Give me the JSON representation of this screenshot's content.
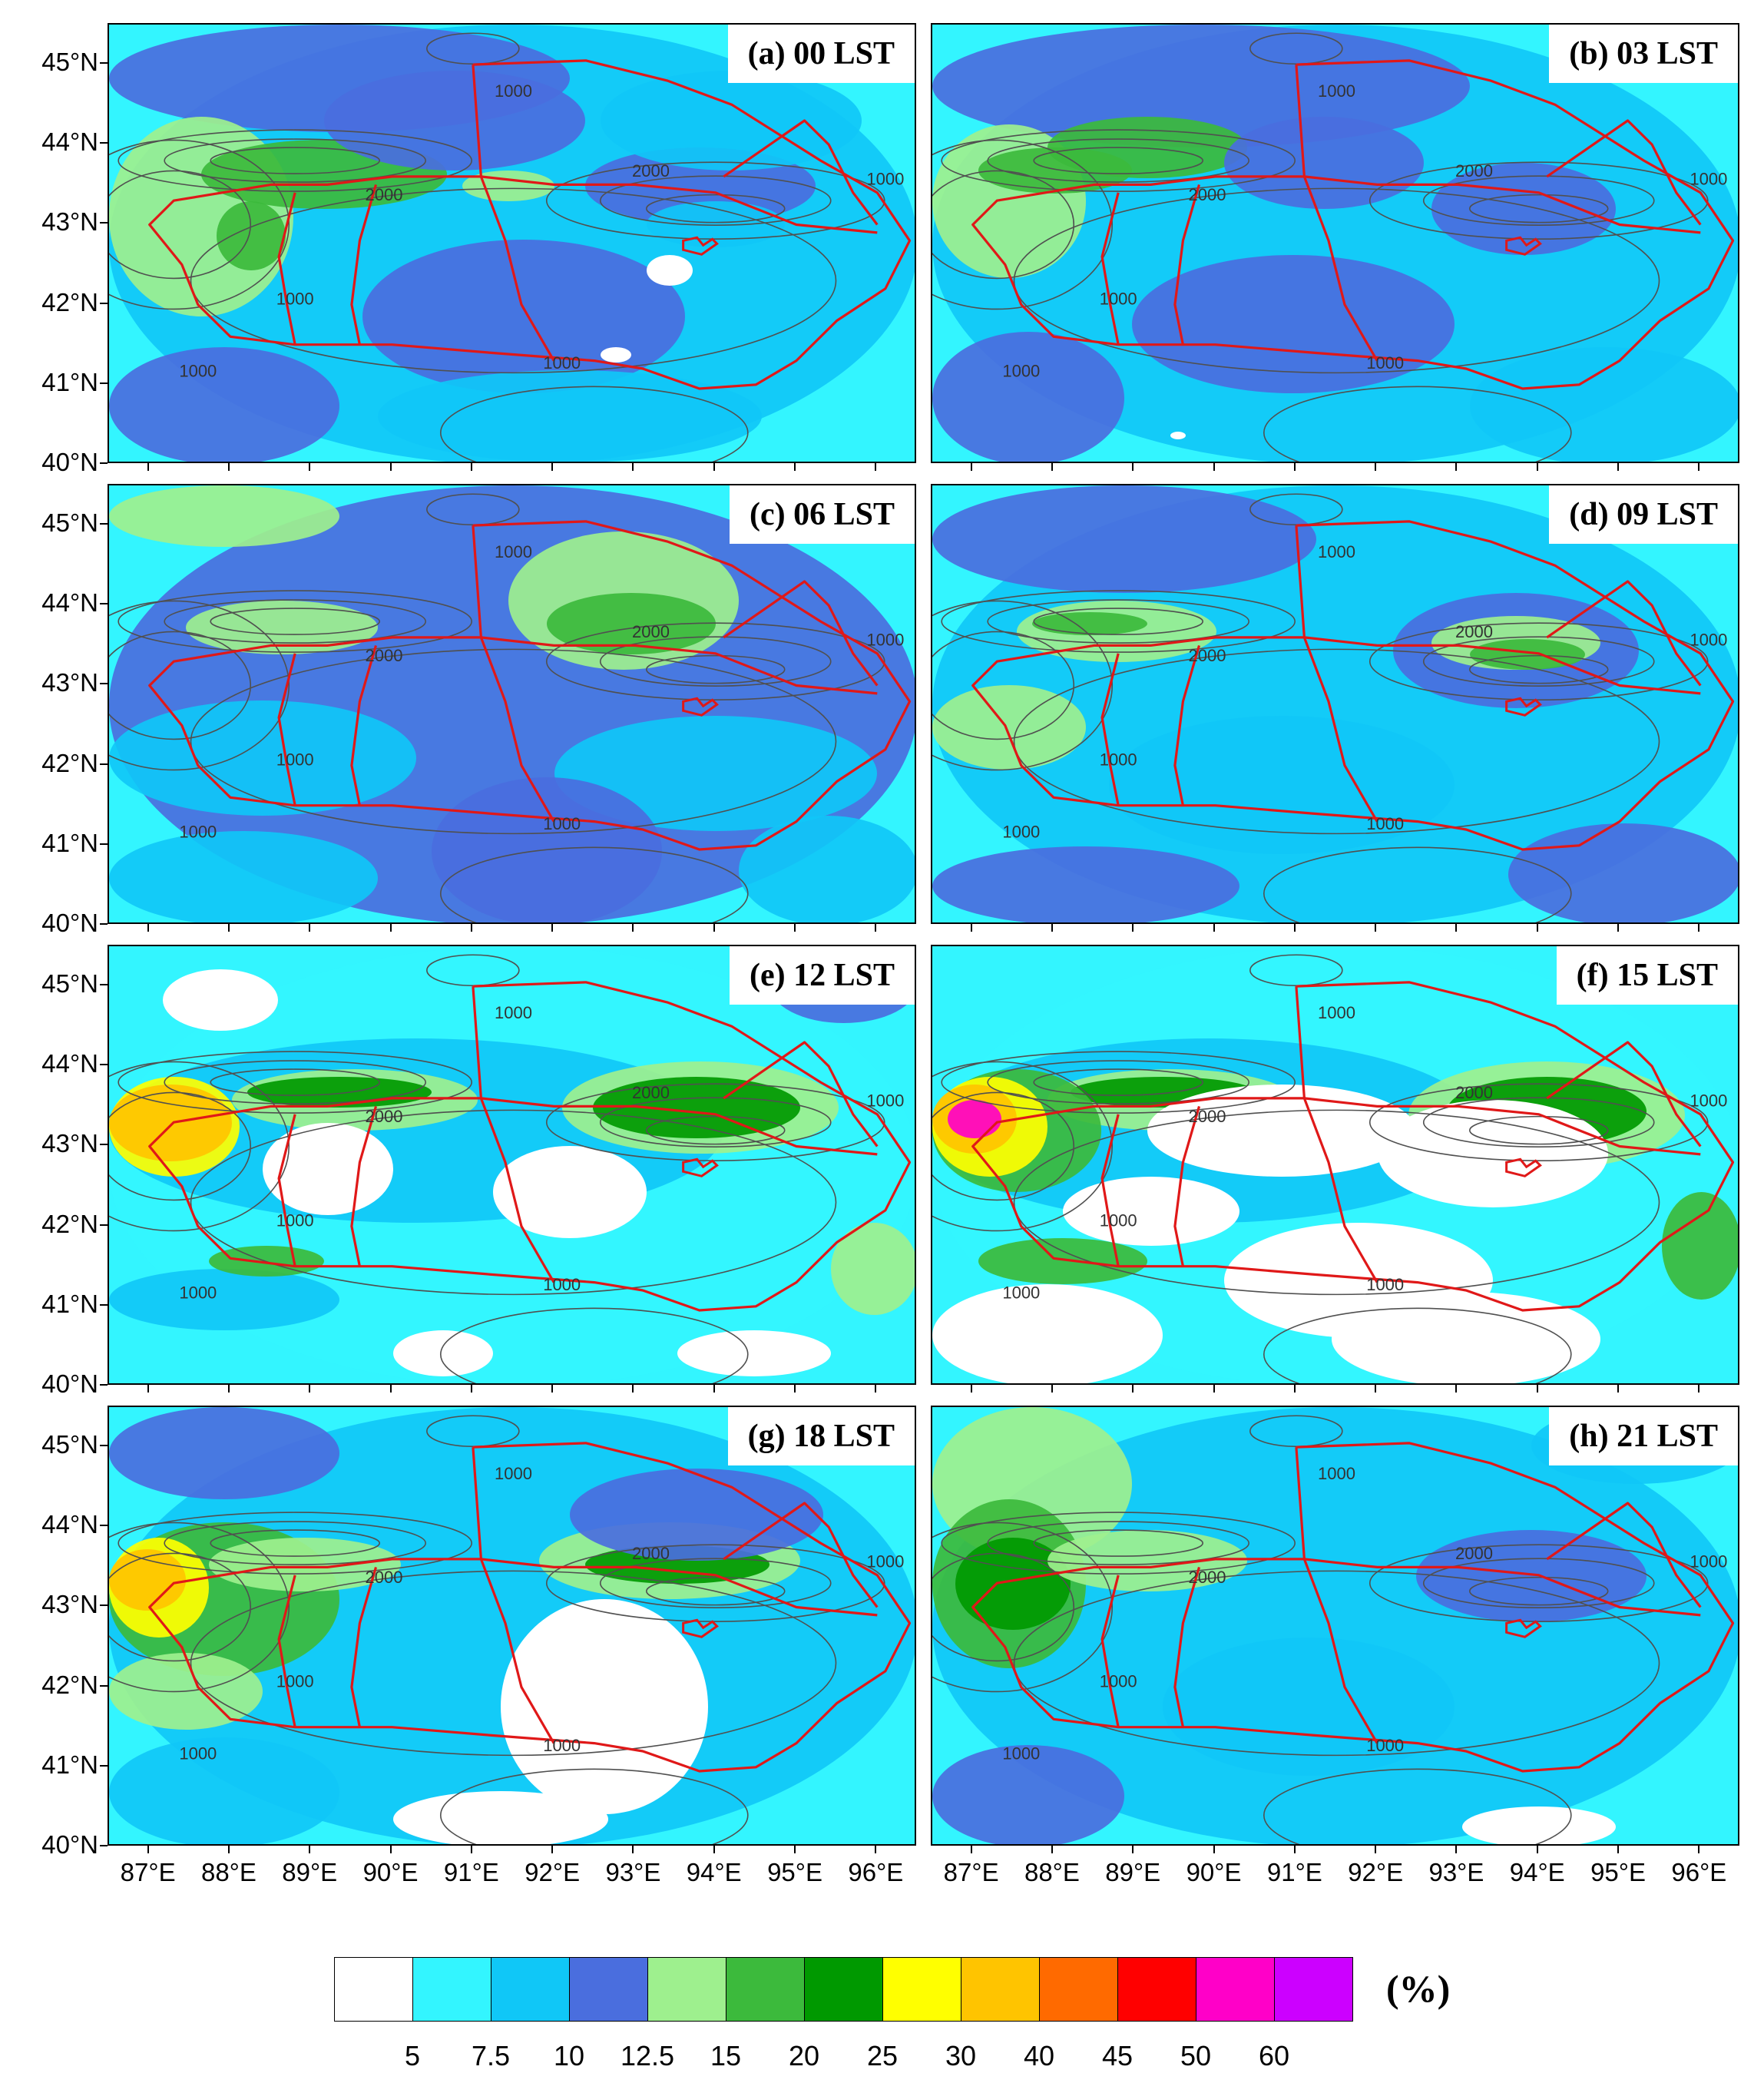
{
  "figure": {
    "panels": [
      {
        "title": "(a) 00 LST"
      },
      {
        "title": "(b) 03 LST"
      },
      {
        "title": "(c) 06 LST"
      },
      {
        "title": "(d) 09 LST"
      },
      {
        "title": "(e) 12 LST"
      },
      {
        "title": "(f) 15 LST"
      },
      {
        "title": "(g) 18 LST"
      },
      {
        "title": "(h) 21 LST"
      }
    ],
    "lat_ticks": [
      "40°N",
      "41°N",
      "42°N",
      "43°N",
      "44°N",
      "45°N"
    ],
    "lon_ticks": [
      "87°E",
      "88°E",
      "89°E",
      "90°E",
      "91°E",
      "92°E",
      "93°E",
      "94°E",
      "95°E",
      "96°E"
    ],
    "contour_label": "1000",
    "contour_label_high": "2000",
    "colorbar": {
      "colors": [
        "#ffffff",
        "#33f5ff",
        "#10c7f7",
        "#4a6ede",
        "#9ef08e",
        "#3cba3c",
        "#009900",
        "#ffff00",
        "#ffc400",
        "#ff6a00",
        "#ff0000",
        "#ff00c8",
        "#cc00ff"
      ],
      "labels": [
        "5",
        "7.5",
        "10",
        "12.5",
        "15",
        "20",
        "25",
        "30",
        "40",
        "45",
        "50",
        "60"
      ],
      "units": "(%)"
    },
    "colors": {
      "boundary": "#e01818",
      "contour": "#505050"
    }
  }
}
